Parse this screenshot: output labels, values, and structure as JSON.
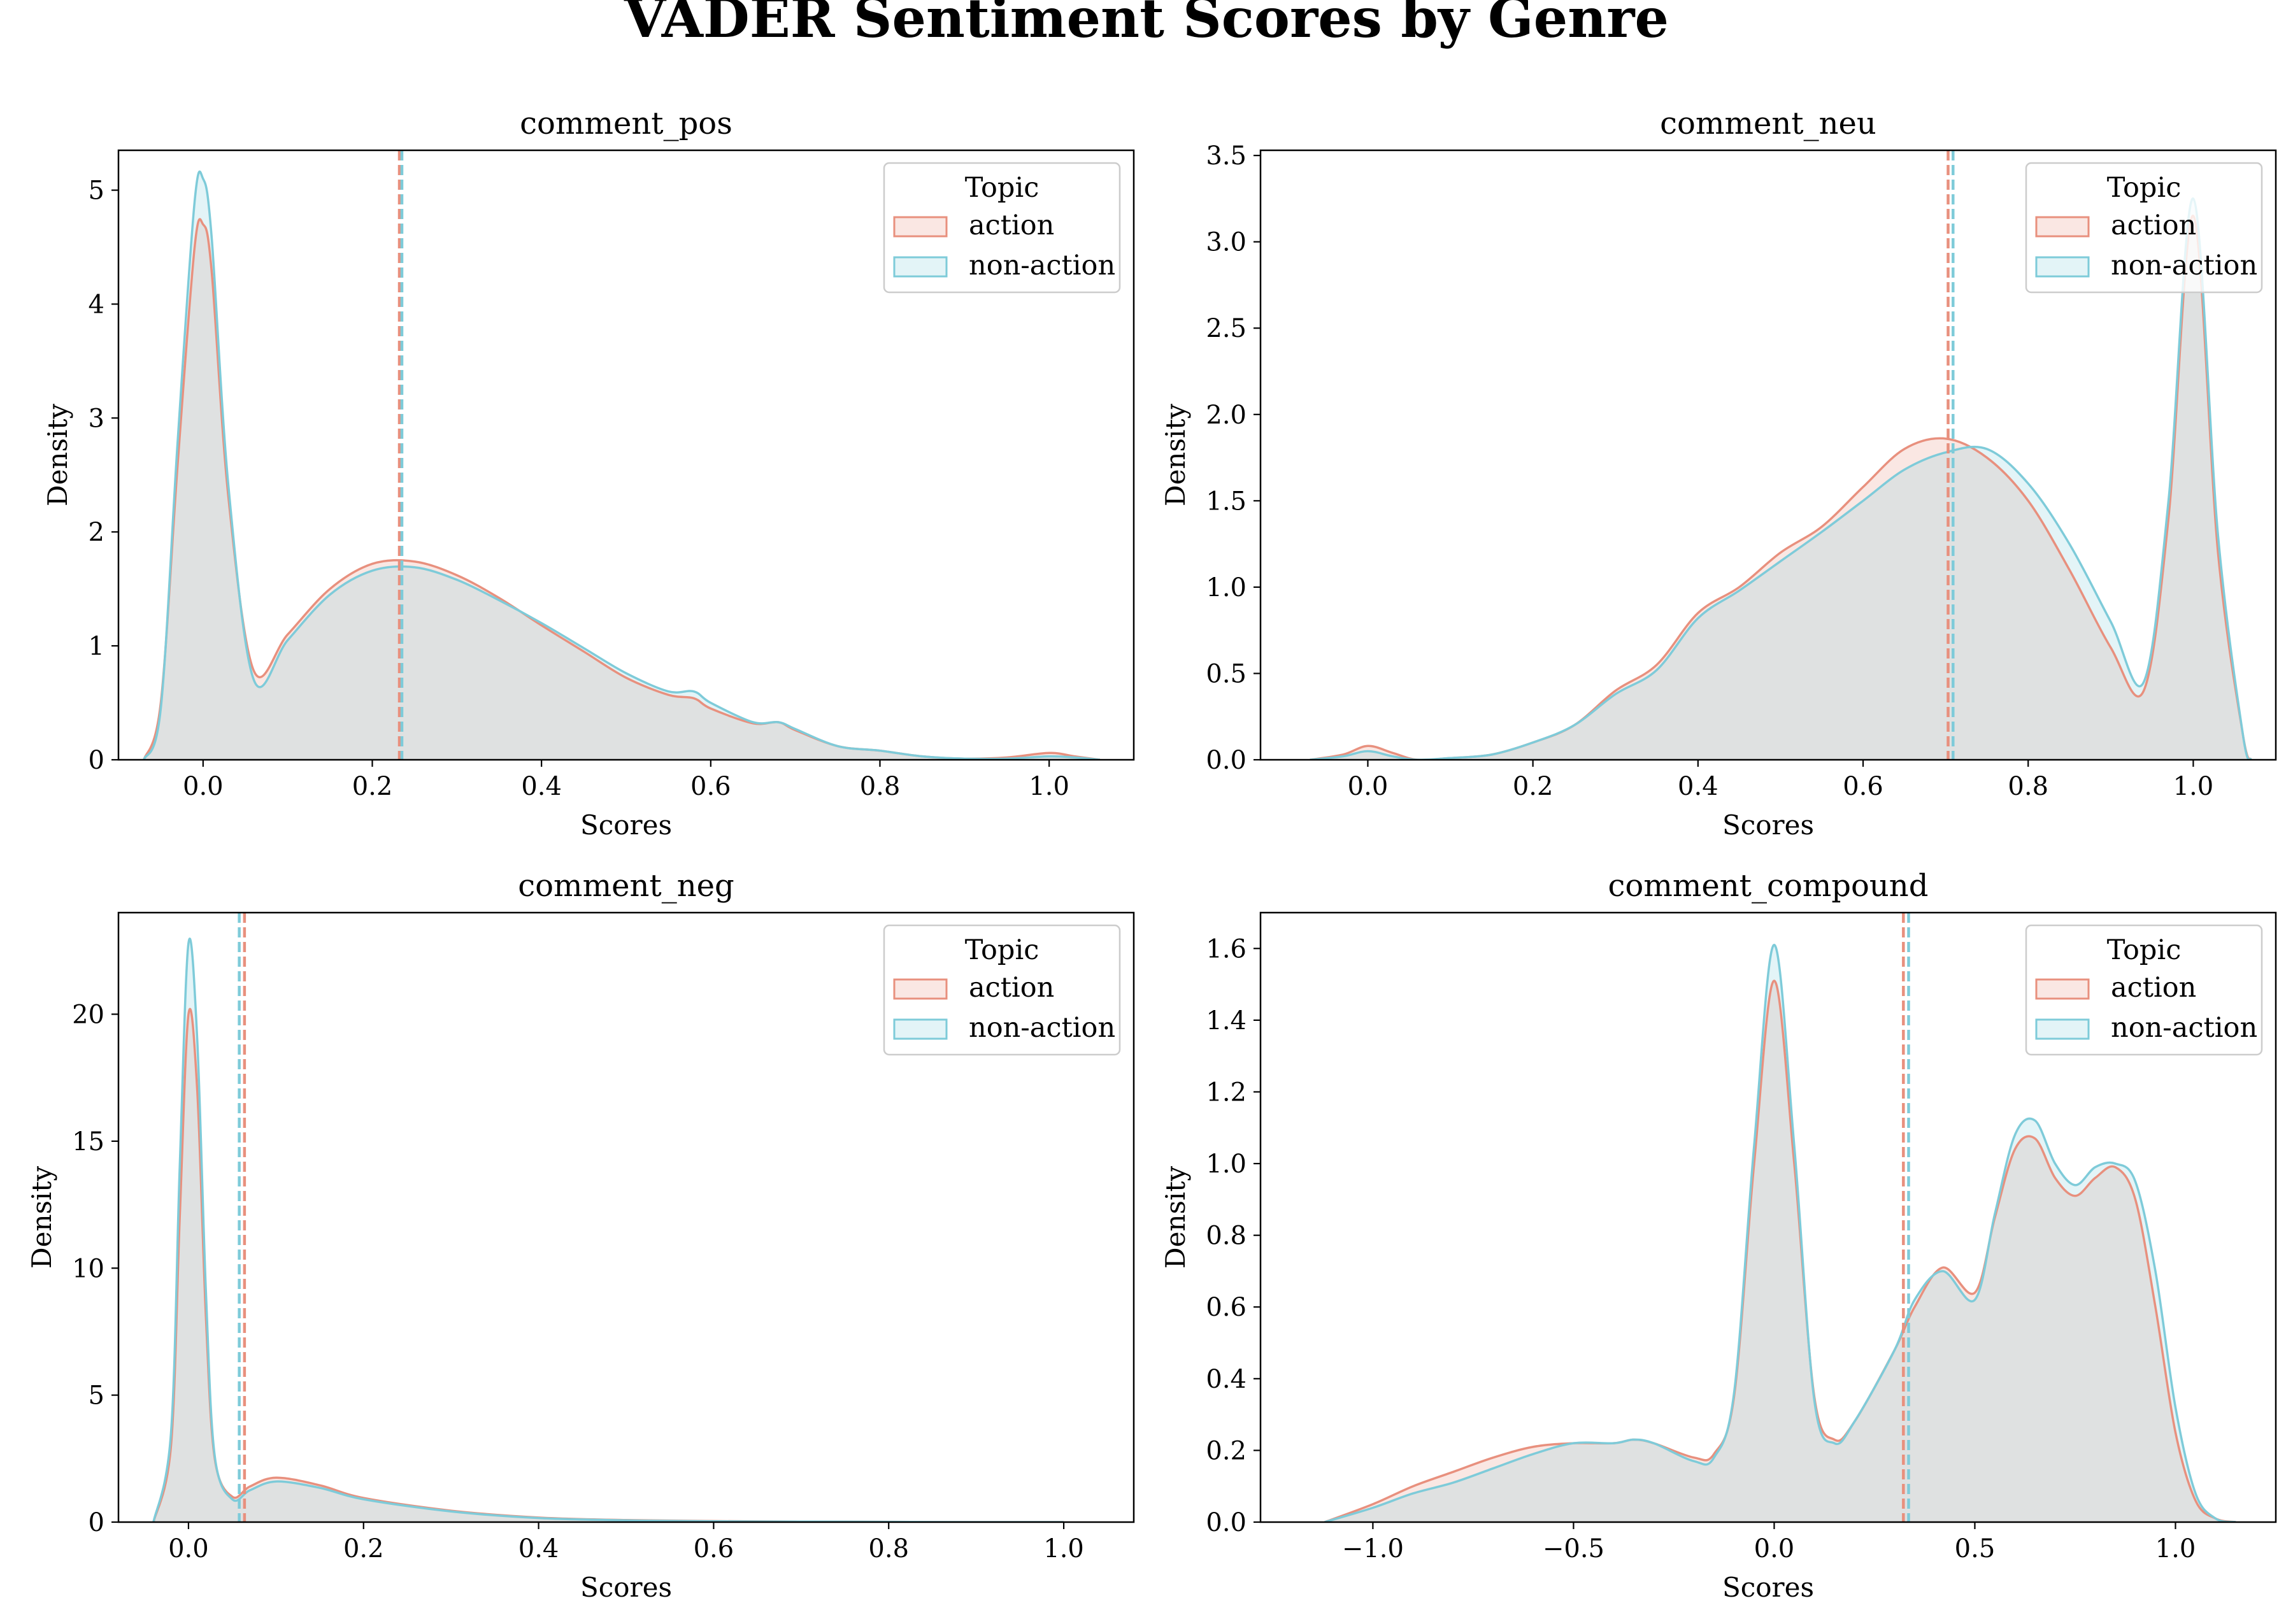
{
  "figure": {
    "title": "VADER Sentiment Scores by Genre",
    "colors": {
      "action": "#e8907e",
      "non_action": "#7ecbd9",
      "overlap": "#e2e5e5"
    }
  },
  "chart_data": [
    {
      "type": "area",
      "title": "comment_pos",
      "xlabel": "Scores",
      "ylabel": "Density",
      "xlim": [
        -0.1,
        1.1
      ],
      "ylim": [
        0,
        5.35
      ],
      "xticks": [
        0.0,
        0.2,
        0.4,
        0.6,
        0.8,
        1.0
      ],
      "xtick_labels": [
        "0.0",
        "0.2",
        "0.4",
        "0.6",
        "0.8",
        "1.0"
      ],
      "yticks": [
        0,
        1,
        2,
        3,
        4,
        5
      ],
      "ytick_labels": [
        "0",
        "1",
        "2",
        "3",
        "4",
        "5"
      ],
      "legend": {
        "title": "Topic",
        "placement": "top-right"
      },
      "series": [
        {
          "name": "action",
          "mean": 0.232,
          "x": [
            -0.07,
            -0.05,
            -0.03,
            -0.01,
            0.0,
            0.01,
            0.03,
            0.06,
            0.1,
            0.15,
            0.2,
            0.25,
            0.3,
            0.35,
            0.4,
            0.45,
            0.5,
            0.55,
            0.58,
            0.6,
            0.65,
            0.68,
            0.7,
            0.75,
            0.8,
            0.85,
            0.9,
            0.95,
            1.0,
            1.03,
            1.06
          ],
          "y": [
            0.0,
            0.5,
            2.6,
            4.5,
            4.7,
            4.3,
            2.3,
            0.78,
            1.1,
            1.5,
            1.72,
            1.74,
            1.62,
            1.42,
            1.18,
            0.95,
            0.72,
            0.57,
            0.54,
            0.45,
            0.32,
            0.33,
            0.26,
            0.12,
            0.08,
            0.03,
            0.01,
            0.02,
            0.06,
            0.03,
            0.0
          ]
        },
        {
          "name": "non-action",
          "mean": 0.235,
          "x": [
            -0.07,
            -0.05,
            -0.03,
            -0.01,
            0.0,
            0.01,
            0.03,
            0.06,
            0.1,
            0.15,
            0.2,
            0.25,
            0.3,
            0.35,
            0.4,
            0.45,
            0.5,
            0.55,
            0.58,
            0.6,
            0.65,
            0.68,
            0.7,
            0.75,
            0.8,
            0.85,
            0.9,
            0.95,
            1.0,
            1.03,
            1.06
          ],
          "y": [
            0.0,
            0.45,
            2.8,
            4.9,
            5.1,
            4.6,
            2.4,
            0.7,
            1.05,
            1.45,
            1.66,
            1.69,
            1.58,
            1.4,
            1.2,
            0.98,
            0.76,
            0.6,
            0.6,
            0.5,
            0.33,
            0.33,
            0.27,
            0.12,
            0.08,
            0.03,
            0.01,
            0.01,
            0.03,
            0.02,
            0.0
          ]
        }
      ]
    },
    {
      "type": "area",
      "title": "comment_neu",
      "xlabel": "Scores",
      "ylabel": "Density",
      "xlim": [
        -0.13,
        1.1
      ],
      "ylim": [
        0,
        3.53
      ],
      "xticks": [
        0.0,
        0.2,
        0.4,
        0.6,
        0.8,
        1.0
      ],
      "xtick_labels": [
        "0.0",
        "0.2",
        "0.4",
        "0.6",
        "0.8",
        "1.0"
      ],
      "yticks": [
        0.0,
        0.5,
        1.0,
        1.5,
        2.0,
        2.5,
        3.0,
        3.5
      ],
      "ytick_labels": [
        "0.0",
        "0.5",
        "1.0",
        "1.5",
        "2.0",
        "2.5",
        "3.0",
        "3.5"
      ],
      "legend": {
        "title": "Topic",
        "placement": "top-right"
      },
      "series": [
        {
          "name": "action",
          "mean": 0.703,
          "x": [
            -0.07,
            -0.03,
            0.0,
            0.03,
            0.06,
            0.1,
            0.15,
            0.2,
            0.25,
            0.3,
            0.35,
            0.4,
            0.45,
            0.5,
            0.55,
            0.6,
            0.65,
            0.7,
            0.75,
            0.8,
            0.85,
            0.9,
            0.94,
            0.97,
            1.0,
            1.03,
            1.06,
            1.07
          ],
          "y": [
            0.0,
            0.03,
            0.08,
            0.04,
            0.0,
            0.01,
            0.03,
            0.1,
            0.2,
            0.4,
            0.55,
            0.85,
            1.0,
            1.2,
            1.35,
            1.58,
            1.8,
            1.86,
            1.75,
            1.5,
            1.1,
            0.65,
            0.4,
            1.4,
            3.15,
            1.2,
            0.15,
            0.0
          ]
        },
        {
          "name": "non-action",
          "mean": 0.709,
          "x": [
            -0.07,
            -0.03,
            0.0,
            0.03,
            0.06,
            0.1,
            0.15,
            0.2,
            0.25,
            0.3,
            0.35,
            0.4,
            0.45,
            0.5,
            0.55,
            0.6,
            0.65,
            0.7,
            0.75,
            0.8,
            0.85,
            0.9,
            0.94,
            0.97,
            1.0,
            1.03,
            1.06,
            1.07
          ],
          "y": [
            0.0,
            0.02,
            0.05,
            0.02,
            0.0,
            0.01,
            0.03,
            0.1,
            0.2,
            0.38,
            0.52,
            0.82,
            0.98,
            1.15,
            1.32,
            1.5,
            1.68,
            1.78,
            1.8,
            1.6,
            1.25,
            0.8,
            0.45,
            1.5,
            3.25,
            1.3,
            0.15,
            0.0
          ]
        }
      ]
    },
    {
      "type": "area",
      "title": "comment_neg",
      "xlabel": "Scores",
      "ylabel": "Density",
      "xlim": [
        -0.08,
        1.08
      ],
      "ylim": [
        0,
        24
      ],
      "xticks": [
        0.0,
        0.2,
        0.4,
        0.6,
        0.8,
        1.0
      ],
      "xtick_labels": [
        "0.0",
        "0.2",
        "0.4",
        "0.6",
        "0.8",
        "1.0"
      ],
      "yticks": [
        0,
        5,
        10,
        15,
        20
      ],
      "ytick_labels": [
        "0",
        "5",
        "10",
        "15",
        "20"
      ],
      "legend": {
        "title": "Topic",
        "placement": "top-right"
      },
      "series": [
        {
          "name": "action",
          "mean": 0.064,
          "x": [
            -0.04,
            -0.02,
            -0.01,
            0.0,
            0.01,
            0.02,
            0.03,
            0.05,
            0.07,
            0.1,
            0.15,
            0.2,
            0.3,
            0.4,
            0.5,
            0.6,
            0.7,
            0.8,
            0.9,
            1.0
          ],
          "y": [
            0.0,
            3.0,
            12.0,
            20.0,
            17.0,
            8.0,
            2.5,
            1.0,
            1.4,
            1.75,
            1.45,
            0.95,
            0.45,
            0.18,
            0.08,
            0.04,
            0.02,
            0.01,
            0.0,
            0.0
          ]
        },
        {
          "name": "non-action",
          "mean": 0.058,
          "x": [
            -0.04,
            -0.02,
            -0.01,
            0.0,
            0.01,
            0.02,
            0.03,
            0.05,
            0.07,
            0.1,
            0.15,
            0.2,
            0.3,
            0.4,
            0.5,
            0.6,
            0.7,
            0.8,
            0.9,
            1.0
          ],
          "y": [
            0.0,
            3.5,
            14.0,
            22.8,
            19.0,
            9.0,
            2.6,
            0.9,
            1.25,
            1.6,
            1.35,
            0.9,
            0.42,
            0.16,
            0.07,
            0.03,
            0.02,
            0.01,
            0.0,
            0.0
          ]
        }
      ]
    },
    {
      "type": "area",
      "title": "comment_compound",
      "xlabel": "Scores",
      "ylabel": "Density",
      "xlim": [
        -1.28,
        1.25
      ],
      "ylim": [
        0,
        1.7
      ],
      "xticks": [
        -1.0,
        -0.5,
        0.0,
        0.5,
        1.0
      ],
      "xtick_labels": [
        "−1.0",
        "−0.5",
        "0.0",
        "0.5",
        "1.0"
      ],
      "yticks": [
        0.0,
        0.2,
        0.4,
        0.6,
        0.8,
        1.0,
        1.2,
        1.4,
        1.6
      ],
      "ytick_labels": [
        "0.0",
        "0.2",
        "0.4",
        "0.6",
        "0.8",
        "1.0",
        "1.2",
        "1.4",
        "1.6"
      ],
      "legend": {
        "title": "Topic",
        "placement": "top-right"
      },
      "series": [
        {
          "name": "action",
          "mean": 0.322,
          "x": [
            -1.12,
            -1.0,
            -0.9,
            -0.8,
            -0.7,
            -0.6,
            -0.5,
            -0.4,
            -0.35,
            -0.3,
            -0.2,
            -0.15,
            -0.1,
            -0.05,
            0.0,
            0.05,
            0.1,
            0.15,
            0.2,
            0.3,
            0.35,
            0.42,
            0.5,
            0.55,
            0.6,
            0.65,
            0.7,
            0.75,
            0.8,
            0.85,
            0.9,
            0.95,
            1.0,
            1.05,
            1.1,
            1.15
          ],
          "y": [
            0.0,
            0.05,
            0.1,
            0.14,
            0.18,
            0.21,
            0.22,
            0.22,
            0.23,
            0.22,
            0.18,
            0.19,
            0.35,
            1.0,
            1.51,
            1.0,
            0.35,
            0.23,
            0.28,
            0.48,
            0.6,
            0.71,
            0.64,
            0.85,
            1.04,
            1.07,
            0.96,
            0.91,
            0.96,
            0.99,
            0.9,
            0.6,
            0.25,
            0.06,
            0.01,
            0.0
          ]
        },
        {
          "name": "non-action",
          "mean": 0.335,
          "x": [
            -1.12,
            -1.0,
            -0.9,
            -0.8,
            -0.7,
            -0.6,
            -0.5,
            -0.4,
            -0.35,
            -0.3,
            -0.2,
            -0.15,
            -0.1,
            -0.05,
            0.0,
            0.05,
            0.1,
            0.15,
            0.2,
            0.3,
            0.35,
            0.42,
            0.5,
            0.55,
            0.6,
            0.65,
            0.7,
            0.75,
            0.8,
            0.85,
            0.9,
            0.95,
            1.0,
            1.05,
            1.1,
            1.15
          ],
          "y": [
            0.0,
            0.04,
            0.08,
            0.11,
            0.15,
            0.19,
            0.22,
            0.22,
            0.23,
            0.22,
            0.17,
            0.18,
            0.36,
            1.05,
            1.61,
            1.05,
            0.34,
            0.22,
            0.28,
            0.48,
            0.62,
            0.7,
            0.62,
            0.86,
            1.08,
            1.12,
            1.0,
            0.94,
            0.99,
            1.0,
            0.95,
            0.7,
            0.32,
            0.08,
            0.01,
            0.0
          ]
        }
      ]
    }
  ]
}
